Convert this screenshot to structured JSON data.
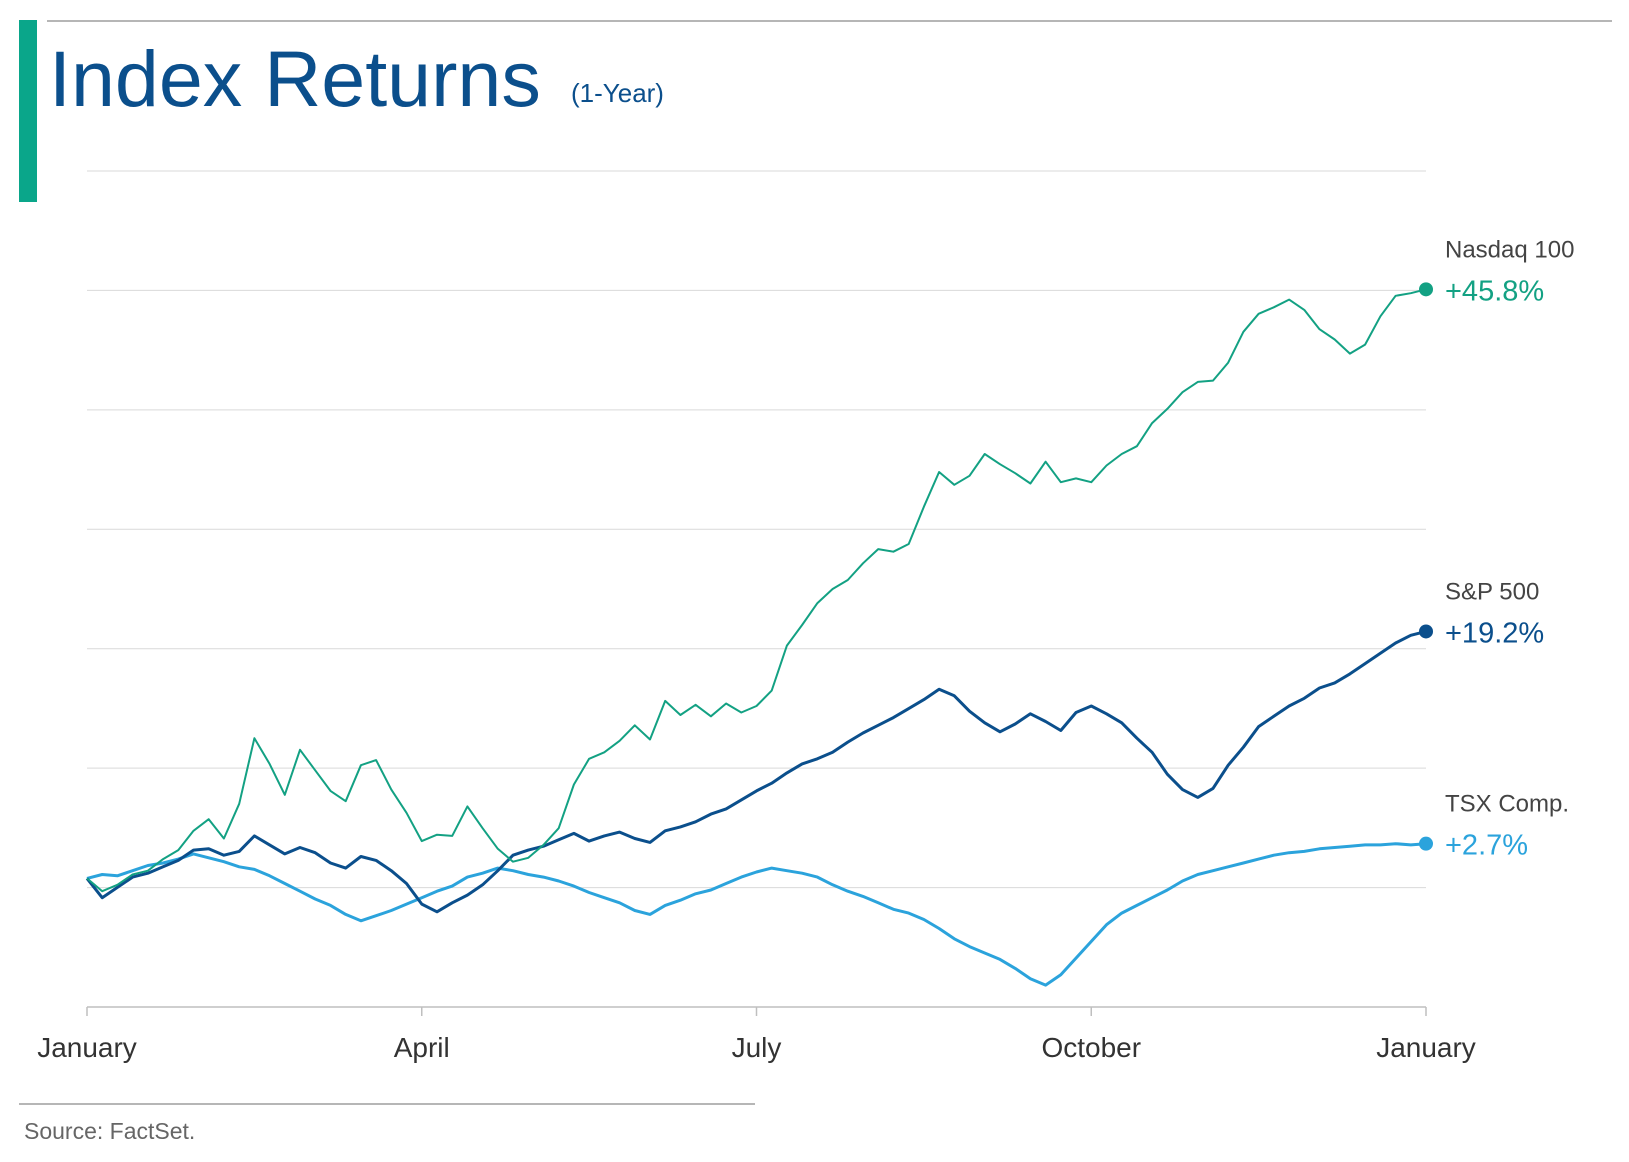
{
  "title": "Index Returns",
  "subtitle": "(1-Year)",
  "source": "Source: FactSet.",
  "colors": {
    "accent_bar": "#0aa68a",
    "title": "#0b4f8c",
    "grid": "#d9d9d9",
    "axis": "#bfbfbf"
  },
  "chart_data": {
    "type": "line",
    "x_ticks": [
      "January",
      "April",
      "July",
      "October",
      "January"
    ],
    "ylabel": "",
    "xlabel": "",
    "ylim": [
      -10,
      55
    ],
    "grid": true,
    "legend": "end-of-line labels",
    "series": [
      {
        "name": "Nasdaq 100",
        "end_label": "+45.8%",
        "color": "#13a183",
        "stroke_width": 2,
        "values": [
          0,
          -1,
          -0.5,
          0.3,
          0.6,
          1.5,
          2.2,
          3.7,
          4.6,
          3.1,
          5.8,
          10.9,
          8.9,
          6.5,
          10.0,
          8.4,
          6.8,
          6.0,
          8.8,
          9.2,
          6.9,
          5.1,
          2.9,
          3.4,
          3.3,
          5.6,
          3.9,
          2.3,
          1.3,
          1.6,
          2.6,
          3.9,
          7.3,
          9.3,
          9.8,
          10.7,
          11.9,
          10.8,
          13.8,
          12.7,
          13.5,
          12.6,
          13.6,
          12.9,
          13.4,
          14.6,
          18.1,
          19.7,
          21.4,
          22.5,
          23.2,
          24.5,
          25.6,
          25.4,
          26.0,
          28.9,
          31.6,
          30.6,
          31.3,
          33.0,
          32.2,
          31.5,
          30.7,
          32.4,
          30.8,
          31.1,
          30.8,
          32.1,
          33.0,
          33.6,
          35.4,
          36.5,
          37.8,
          38.6,
          38.7,
          40.1,
          42.5,
          43.9,
          44.4,
          45.0,
          44.2,
          42.7,
          41.9,
          40.8,
          41.5,
          43.7,
          45.3,
          45.5,
          45.8
        ]
      },
      {
        "name": "S&P 500",
        "end_label": "+19.2%",
        "color": "#0b4f8c",
        "stroke_width": 3,
        "values": [
          0,
          -1.5,
          -0.7,
          0.1,
          0.4,
          0.9,
          1.4,
          2.2,
          2.3,
          1.8,
          2.1,
          3.3,
          2.6,
          1.9,
          2.4,
          2.0,
          1.2,
          0.8,
          1.7,
          1.4,
          0.6,
          -0.4,
          -2.0,
          -2.6,
          -1.9,
          -1.3,
          -0.5,
          0.6,
          1.8,
          2.2,
          2.5,
          3.0,
          3.5,
          2.9,
          3.3,
          3.6,
          3.1,
          2.8,
          3.7,
          4.0,
          4.4,
          5.0,
          5.4,
          6.1,
          6.8,
          7.4,
          8.2,
          8.9,
          9.3,
          9.8,
          10.6,
          11.3,
          11.9,
          12.5,
          13.2,
          13.9,
          14.7,
          14.2,
          13.0,
          12.1,
          11.4,
          12.0,
          12.8,
          12.2,
          11.5,
          12.9,
          13.4,
          12.8,
          12.1,
          10.9,
          9.8,
          8.1,
          6.9,
          6.3,
          7.0,
          8.8,
          10.2,
          11.8,
          12.6,
          13.4,
          14.0,
          14.8,
          15.2,
          15.9,
          16.7,
          17.5,
          18.3,
          18.9,
          19.2
        ]
      },
      {
        "name": "TSX Comp.",
        "end_label": "+2.7%",
        "color": "#2ba3dc",
        "stroke_width": 3,
        "values": [
          0,
          0.3,
          0.2,
          0.6,
          1.0,
          1.2,
          1.5,
          1.9,
          1.6,
          1.3,
          0.9,
          0.7,
          0.2,
          -0.4,
          -1.0,
          -1.6,
          -2.1,
          -2.8,
          -3.3,
          -2.9,
          -2.5,
          -2.0,
          -1.5,
          -1.0,
          -0.6,
          0.1,
          0.4,
          0.8,
          0.6,
          0.3,
          0.1,
          -0.2,
          -0.6,
          -1.1,
          -1.5,
          -1.9,
          -2.5,
          -2.8,
          -2.1,
          -1.7,
          -1.2,
          -0.9,
          -0.4,
          0.1,
          0.5,
          0.8,
          0.6,
          0.4,
          0.1,
          -0.5,
          -1.0,
          -1.4,
          -1.9,
          -2.4,
          -2.7,
          -3.2,
          -3.9,
          -4.7,
          -5.3,
          -5.8,
          -6.3,
          -7.0,
          -7.8,
          -8.3,
          -7.5,
          -6.2,
          -4.9,
          -3.6,
          -2.7,
          -2.1,
          -1.5,
          -0.9,
          -0.2,
          0.3,
          0.6,
          0.9,
          1.2,
          1.5,
          1.8,
          2.0,
          2.1,
          2.3,
          2.4,
          2.5,
          2.6,
          2.6,
          2.7,
          2.6,
          2.7
        ]
      }
    ]
  }
}
